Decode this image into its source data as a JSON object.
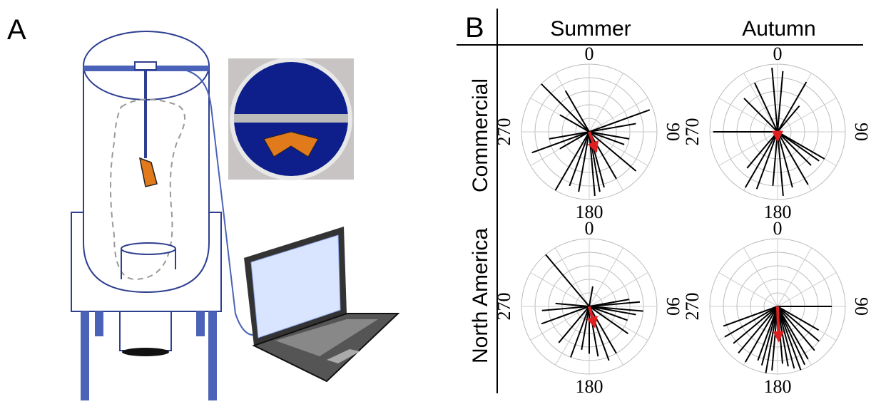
{
  "panel_a": {
    "label": "A"
  },
  "panel_b": {
    "label": "B",
    "columns": [
      "Summer",
      "Autumn"
    ],
    "rows": [
      "Commercial",
      "North America"
    ],
    "plots": [
      {
        "angle_labels": [
          "0",
          "90",
          "180",
          "270"
        ],
        "vectors": [
          [
            315,
            1.0
          ],
          [
            330,
            0.7
          ],
          [
            300,
            0.5
          ],
          [
            70,
            0.95
          ],
          [
            80,
            0.7
          ],
          [
            100,
            0.6
          ],
          [
            110,
            0.55
          ],
          [
            130,
            0.9
          ],
          [
            150,
            0.8
          ],
          [
            165,
            0.85
          ],
          [
            170,
            0.9
          ],
          [
            175,
            0.95
          ],
          [
            190,
            0.9
          ],
          [
            200,
            0.85
          ],
          [
            210,
            1.0
          ],
          [
            260,
            0.6
          ],
          [
            250,
            0.9
          ],
          [
            240,
            0.5
          ]
        ],
        "mean": [
          160,
          0.3
        ]
      },
      {
        "angle_labels": [
          "0",
          "90",
          "180",
          "270"
        ],
        "vectors": [
          [
            355,
            0.95
          ],
          [
            5,
            0.9
          ],
          [
            335,
            0.8
          ],
          [
            30,
            0.85
          ],
          [
            315,
            0.7
          ],
          [
            270,
            0.95
          ],
          [
            120,
            0.8
          ],
          [
            125,
            0.75
          ],
          [
            135,
            0.7
          ],
          [
            150,
            0.9
          ],
          [
            165,
            0.85
          ],
          [
            175,
            0.95
          ],
          [
            185,
            0.8
          ],
          [
            200,
            0.9
          ],
          [
            210,
            0.95
          ],
          [
            220,
            0.7
          ],
          [
            40,
            0.5
          ]
        ],
        "mean": [
          180,
          0.12
        ]
      },
      {
        "angle_labels": [
          "0",
          "90",
          "180",
          "270"
        ],
        "vectors": [
          [
            320,
            1.0
          ],
          [
            10,
            0.3
          ],
          [
            80,
            0.6
          ],
          [
            85,
            0.75
          ],
          [
            95,
            0.8
          ],
          [
            100,
            0.7
          ],
          [
            110,
            0.6
          ],
          [
            125,
            0.7
          ],
          [
            150,
            0.8
          ],
          [
            160,
            0.85
          ],
          [
            170,
            0.75
          ],
          [
            180,
            0.7
          ],
          [
            190,
            0.65
          ],
          [
            200,
            0.8
          ],
          [
            220,
            0.7
          ],
          [
            250,
            0.75
          ],
          [
            265,
            0.7
          ],
          [
            275,
            0.5
          ]
        ],
        "mean": [
          165,
          0.3
        ]
      },
      {
        "angle_labels": [
          "0",
          "90",
          "180",
          "270"
        ],
        "vectors": [
          [
            90,
            0.8
          ],
          [
            120,
            0.7
          ],
          [
            130,
            0.8
          ],
          [
            140,
            0.85
          ],
          [
            150,
            0.9
          ],
          [
            155,
            0.95
          ],
          [
            160,
            1.0
          ],
          [
            165,
            0.95
          ],
          [
            170,
            0.9
          ],
          [
            175,
            0.85
          ],
          [
            185,
            0.95
          ],
          [
            190,
            1.0
          ],
          [
            195,
            0.9
          ],
          [
            200,
            0.85
          ],
          [
            210,
            0.95
          ],
          [
            220,
            0.9
          ],
          [
            230,
            0.85
          ],
          [
            240,
            0.9
          ],
          [
            250,
            0.85
          ]
        ],
        "mean": [
          178,
          0.5
        ]
      }
    ]
  }
}
